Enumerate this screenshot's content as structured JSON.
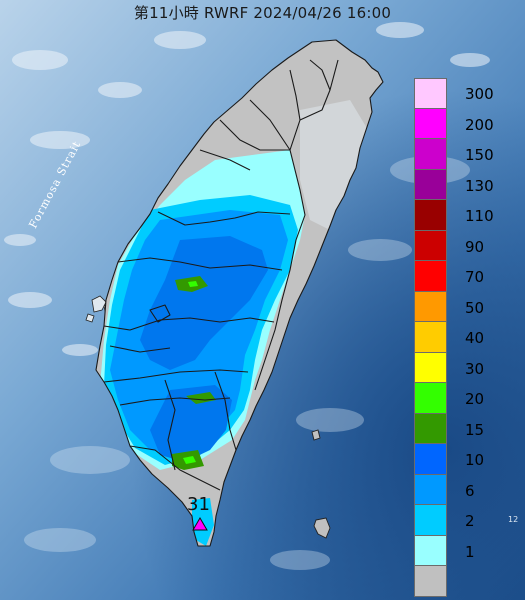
{
  "title": "第11小時  RWRF 2024/04/26 16:00",
  "strait_label": "Formosa Strait",
  "legend": [
    {
      "label": "300",
      "color": "#ffc8ff"
    },
    {
      "label": "200",
      "color": "#ff00ff"
    },
    {
      "label": "150",
      "color": "#cc00cc"
    },
    {
      "label": "130",
      "color": "#990099"
    },
    {
      "label": "110",
      "color": "#990000"
    },
    {
      "label": "90",
      "color": "#cc0000"
    },
    {
      "label": "70",
      "color": "#ff0000"
    },
    {
      "label": "50",
      "color": "#ff9900"
    },
    {
      "label": "40",
      "color": "#ffcc00"
    },
    {
      "label": "30",
      "color": "#ffff00"
    },
    {
      "label": "20",
      "color": "#33ff00"
    },
    {
      "label": "15",
      "color": "#339900"
    },
    {
      "label": "10",
      "color": "#0066ff"
    },
    {
      "label": "6",
      "color": "#0099ff"
    },
    {
      "label": "2",
      "color": "#00ccff"
    },
    {
      "label": "1",
      "color": "#99ffff"
    },
    {
      "label": "",
      "color": "#c0c0c0"
    }
  ],
  "peak_value": "31",
  "edge_label": "12"
}
